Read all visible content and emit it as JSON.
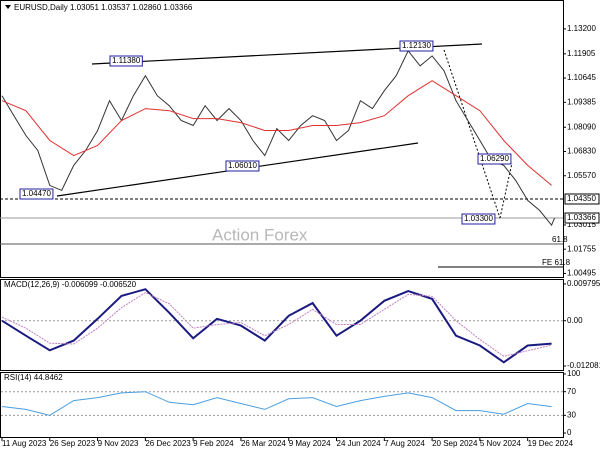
{
  "chart_data": [
    {
      "type": "line",
      "title": "EURUSD,Daily  1.03051 1.03537 1.02860 1.03366",
      "xlim": [
        0,
        377
      ],
      "ylim": [
        1.0031,
        1.1465
      ],
      "yticks": [
        {
          "value": 1.132,
          "label": "1.13200"
        },
        {
          "value": 1.11905,
          "label": "1.11905"
        },
        {
          "value": 1.10645,
          "label": "1.10645"
        },
        {
          "value": 1.09385,
          "label": "1.09385"
        },
        {
          "value": 1.0809,
          "label": "1.08090"
        },
        {
          "value": 1.0683,
          "label": "1.06830"
        },
        {
          "value": 1.0557,
          "label": "1.05570"
        },
        {
          "value": 1.03015,
          "label": "1.03015"
        },
        {
          "value": 1.01755,
          "label": "1.01755"
        },
        {
          "value": 1.00495,
          "label": "1.00495"
        }
      ],
      "grid": false,
      "series": [
        {
          "name": "EURUSD",
          "color": "#333333",
          "x": [
            0,
            8,
            16,
            24,
            32,
            40,
            48,
            56,
            64,
            72,
            80,
            88,
            96,
            104,
            112,
            120,
            128,
            136,
            144,
            152,
            160,
            168,
            176,
            184,
            192,
            200,
            208,
            216,
            224,
            232,
            240,
            248,
            256,
            264,
            272,
            280,
            288,
            296,
            304,
            312,
            320,
            328,
            336,
            344,
            352,
            360,
            368,
            370
          ],
          "values": [
            1.0973,
            1.0869,
            1.0766,
            1.0688,
            1.0507,
            1.0481,
            1.0611,
            1.0688,
            1.0792,
            1.0947,
            1.0844,
            1.0973,
            1.1077,
            1.0973,
            1.0921,
            1.0844,
            1.0818,
            1.0921,
            1.0844,
            1.0906,
            1.0844,
            1.074,
            1.0662,
            1.0802,
            1.074,
            1.0818,
            1.0869,
            1.0844,
            1.074,
            1.0792,
            1.0947,
            1.0906,
            1.0999,
            1.1077,
            1.1206,
            1.1128,
            1.118,
            1.1103,
            1.0947,
            1.0844,
            1.074,
            1.0636,
            1.0611,
            1.0533,
            1.0429,
            1.0377,
            1.03,
            1.0337
          ]
        },
        {
          "name": "MA",
          "color": "#e03030",
          "x": [
            0,
            16,
            32,
            48,
            64,
            80,
            96,
            112,
            128,
            144,
            160,
            176,
            192,
            208,
            224,
            240,
            256,
            272,
            288,
            304,
            320,
            336,
            352,
            368
          ],
          "values": [
            1.0947,
            1.0895,
            1.074,
            1.0662,
            1.0714,
            1.0844,
            1.0906,
            1.0895,
            1.0854,
            1.0854,
            1.0833,
            1.0792,
            1.0792,
            1.0818,
            1.0818,
            1.0833,
            1.0869,
            1.0973,
            1.1051,
            1.0973,
            1.0895,
            1.074,
            1.0611,
            1.0507
          ]
        }
      ],
      "annotations": [
        "1.04470",
        "1.11380",
        "1.06010",
        "1.12130",
        "1.06290",
        "1.03300",
        "61.8",
        "FE 61.8",
        "Action Forex"
      ],
      "price_boxes": [
        "1.04350",
        "1.03366"
      ]
    },
    {
      "type": "line",
      "title": "MACD(12,26,9) -0.006099 -0.006520",
      "xlim": [
        0,
        377
      ],
      "ylim": [
        -0.01314,
        0.01085
      ],
      "yticks": [
        {
          "value": 0.009795,
          "label": "0.009795"
        },
        {
          "value": 0,
          "label": "0.00"
        },
        {
          "value": -0.012081,
          "label": "-0.012081"
        }
      ],
      "grid": true,
      "series": [
        {
          "name": "MACD",
          "color": "#1a1a80",
          "x": [
            0,
            16,
            32,
            48,
            64,
            80,
            96,
            112,
            128,
            144,
            160,
            176,
            192,
            208,
            224,
            240,
            256,
            272,
            288,
            304,
            320,
            336,
            352,
            368
          ],
          "values": [
            0,
            -0.004,
            -0.0079,
            -0.0053,
            0.0005,
            0.0066,
            0.0084,
            0.0021,
            -0.0047,
            0.0005,
            -0.0013,
            -0.0053,
            0.0013,
            0.0047,
            -0.004,
            0,
            0.0053,
            0.0079,
            0.0058,
            -0.004,
            -0.0066,
            -0.0111,
            -0.0066,
            -0.0061
          ]
        },
        {
          "name": "Signal",
          "color": "#c080c0",
          "x": [
            0,
            16,
            32,
            48,
            64,
            80,
            96,
            112,
            128,
            144,
            160,
            176,
            192,
            208,
            224,
            240,
            256,
            272,
            288,
            304,
            320,
            336,
            352,
            368
          ],
          "values": [
            0.001,
            -0.002,
            -0.006,
            -0.0062,
            -0.002,
            0.0035,
            0.0075,
            0.0045,
            -0.002,
            -0.001,
            -0.0005,
            -0.004,
            -0.001,
            0.003,
            -0.001,
            -0.001,
            0.003,
            0.007,
            0.0065,
            0,
            -0.005,
            -0.0095,
            -0.008,
            -0.0065
          ]
        }
      ]
    },
    {
      "type": "line",
      "title": "RSI(14) 44.8462",
      "xlim": [
        0,
        377
      ],
      "ylim": [
        -6.7,
        101.7
      ],
      "yticks": [
        100,
        70,
        30,
        0
      ],
      "grid": true,
      "xticks": [
        {
          "value": 0,
          "label": "11 Aug 2023"
        },
        {
          "value": 32,
          "label": "26 Sep 2023"
        },
        {
          "value": 64,
          "label": "9 Nov 2023"
        },
        {
          "value": 96,
          "label": "26 Dec 2023"
        },
        {
          "value": 128,
          "label": "9 Feb 2024"
        },
        {
          "value": 160,
          "label": "26 Mar 2024"
        },
        {
          "value": 192,
          "label": "9 May 2024"
        },
        {
          "value": 224,
          "label": "24 Jun 2024"
        },
        {
          "value": 256,
          "label": "7 Aug 2024"
        },
        {
          "value": 288,
          "label": "20 Sep 2024"
        },
        {
          "value": 320,
          "label": "5 Nov 2024"
        },
        {
          "value": 352,
          "label": "19 Dec 2024"
        }
      ],
      "series": [
        {
          "name": "RSI",
          "color": "#4a9ee0",
          "x": [
            0,
            16,
            32,
            48,
            64,
            80,
            96,
            112,
            128,
            144,
            160,
            176,
            192,
            208,
            224,
            240,
            256,
            272,
            288,
            304,
            320,
            336,
            352,
            368
          ],
          "values": [
            45,
            40,
            30,
            55,
            60,
            68,
            70,
            52,
            48,
            60,
            50,
            40,
            58,
            60,
            45,
            55,
            62,
            68,
            60,
            38,
            38,
            32,
            50,
            44.8
          ]
        }
      ]
    }
  ]
}
